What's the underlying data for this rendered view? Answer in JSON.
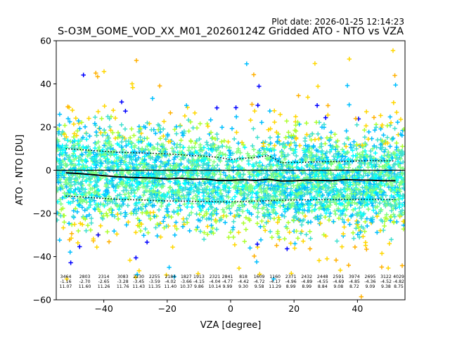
{
  "plot_date": "Plot date: 2026-01-25 12:14:23",
  "chart_data": {
    "type": "scatter",
    "title": "S-O3M_GOME_VOD_XX_M01_20260124Z Gridded ATO - NTO vs VZA",
    "xlabel": "VZA [degree]",
    "ylabel": "ATO - NTO [DU]",
    "xlim": [
      -55,
      55
    ],
    "ylim": [
      -60,
      60
    ],
    "xticks": [
      -40,
      -20,
      0,
      20,
      40
    ],
    "yticks": [
      -60,
      -40,
      -20,
      0,
      20,
      40,
      60
    ],
    "xtick_labels": [
      "−40",
      "−20",
      "0",
      "20",
      "40"
    ],
    "ytick_labels": [
      "−60",
      "−40",
      "−20",
      "0",
      "20",
      "40",
      "60"
    ],
    "marker": "+",
    "colors": [
      "#00bfff",
      "#1e90ff",
      "#40e0d0",
      "#7fff7f",
      "#adff2f",
      "#ffd700",
      "#ffb000",
      "#0000ff",
      "#00ffff"
    ],
    "hline_y": 0,
    "bin_centers": [
      -52,
      -48,
      -44,
      -40,
      -36,
      -32,
      -28,
      -24,
      -20,
      -16,
      -12,
      -8,
      -4,
      0,
      4,
      8,
      12,
      16,
      20,
      24,
      28,
      32,
      36,
      40,
      44,
      48,
      52
    ],
    "mean_line": [
      -1.16,
      -1.5,
      -2.0,
      -2.5,
      -3.0,
      -3.28,
      -3.45,
      -3.59,
      -4.02,
      -3.66,
      -4.15,
      -4.04,
      -4.77,
      -4.7,
      -4.42,
      -4.72,
      -4.17,
      -4.96,
      -4.89,
      -4.55,
      -4.69,
      -4.85,
      -4.36,
      -4.52,
      -4.6,
      -4.82,
      -4.82
    ],
    "upper_line": [
      10.0,
      9.6,
      9.2,
      8.8,
      8.4,
      8.2,
      8.0,
      7.8,
      7.6,
      7.2,
      6.8,
      6.5,
      6.0,
      5.0,
      5.5,
      6.0,
      6.8,
      3.5,
      3.6,
      3.7,
      3.9,
      4.0,
      4.1,
      4.3,
      4.5,
      4.4,
      4.3
    ],
    "lower_line": [
      -12.0,
      -12.3,
      -12.7,
      -13.0,
      -13.4,
      -13.6,
      -13.8,
      -14.0,
      -14.2,
      -14.3,
      -14.4,
      -14.5,
      -14.6,
      -14.7,
      -14.4,
      -14.3,
      -14.1,
      -13.9,
      -13.8,
      -13.7,
      -13.6,
      -13.6,
      -13.5,
      -13.5,
      -13.5,
      -13.5,
      -13.6
    ],
    "bin_stats": [
      {
        "x": -52,
        "count": "3464",
        "mean": "-1.16",
        "std": "11.07"
      },
      {
        "x": -46,
        "count": "2803",
        "mean": "-2.70",
        "std": "11.60"
      },
      {
        "x": -40,
        "count": "2314",
        "mean": "-2.65",
        "std": "11.26"
      },
      {
        "x": -34,
        "count": "3083",
        "mean": "-3.28",
        "std": "11.76"
      },
      {
        "x": -29,
        "count": "2230",
        "mean": "-3.45",
        "std": "11.43"
      },
      {
        "x": -24,
        "count": "2255",
        "mean": "-3.59",
        "std": "11.35"
      },
      {
        "x": -19,
        "count": "2184",
        "mean": "-4.02",
        "std": "11.40"
      },
      {
        "x": -14,
        "count": "1827",
        "mean": "-3.66",
        "std": "10.37"
      },
      {
        "x": -10,
        "count": "1913",
        "mean": "-4.15",
        "std": "9.86"
      },
      {
        "x": -5,
        "count": "2321",
        "mean": "-4.04",
        "std": "10.14"
      },
      {
        "x": -1,
        "count": "2841",
        "mean": "-4.77",
        "std": "9.99"
      },
      {
        "x": 4,
        "count": "818",
        "mean": "-4.42",
        "std": "9.30"
      },
      {
        "x": 9,
        "count": "1609",
        "mean": "-4.72",
        "std": "9.58"
      },
      {
        "x": 14,
        "count": "1160",
        "mean": "-4.17",
        "std": "11.29"
      },
      {
        "x": 19,
        "count": "2371",
        "mean": "-4.96",
        "std": "8.99"
      },
      {
        "x": 24,
        "count": "2432",
        "mean": "-4.89",
        "std": "8.99"
      },
      {
        "x": 29,
        "count": "2448",
        "mean": "-4.55",
        "std": "8.84"
      },
      {
        "x": 34,
        "count": "2591",
        "mean": "-4.69",
        "std": "9.08"
      },
      {
        "x": 39,
        "count": "3974",
        "mean": "-4.85",
        "std": "8.72"
      },
      {
        "x": 44,
        "count": "2695",
        "mean": "-4.36",
        "std": "9.09"
      },
      {
        "x": 49,
        "count": "3122",
        "mean": "-4.52",
        "std": "9.38"
      },
      {
        "x": 53,
        "count": "4029",
        "mean": "-4.82",
        "std": "8.75"
      }
    ]
  }
}
